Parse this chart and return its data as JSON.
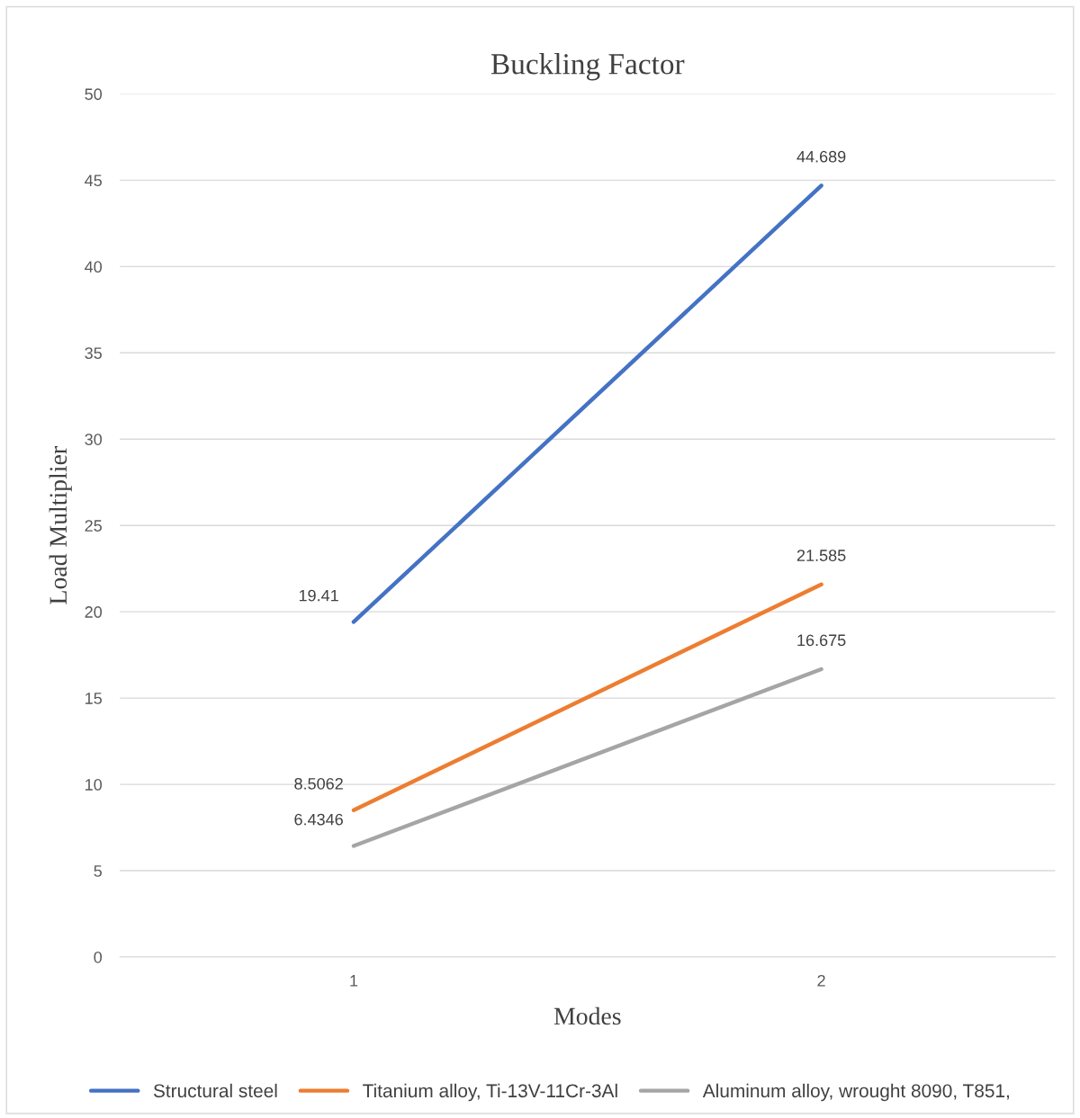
{
  "chart_data": {
    "type": "line",
    "title": "Buckling Factor",
    "xlabel": "Modes",
    "ylabel": "Load Multiplier",
    "categories": [
      "1",
      "2"
    ],
    "series": [
      {
        "name": "Structural steel",
        "color": "#4472c4",
        "values": [
          19.41,
          44.689
        ]
      },
      {
        "name": "Titanium alloy, Ti-13V-11Cr-3Al",
        "color": "#ed7d31",
        "values": [
          8.5062,
          21.585
        ]
      },
      {
        "name": "Aluminum alloy, wrought 8090, T851,",
        "color": "#a5a5a5",
        "values": [
          6.4346,
          16.675
        ]
      }
    ],
    "ylim": [
      0,
      50
    ],
    "yticks": [
      0,
      5,
      10,
      15,
      20,
      25,
      30,
      35,
      40,
      45,
      50
    ],
    "grid": "y",
    "legend": "bottom",
    "data_labels": true,
    "marker": "none",
    "line_style": "solid"
  }
}
